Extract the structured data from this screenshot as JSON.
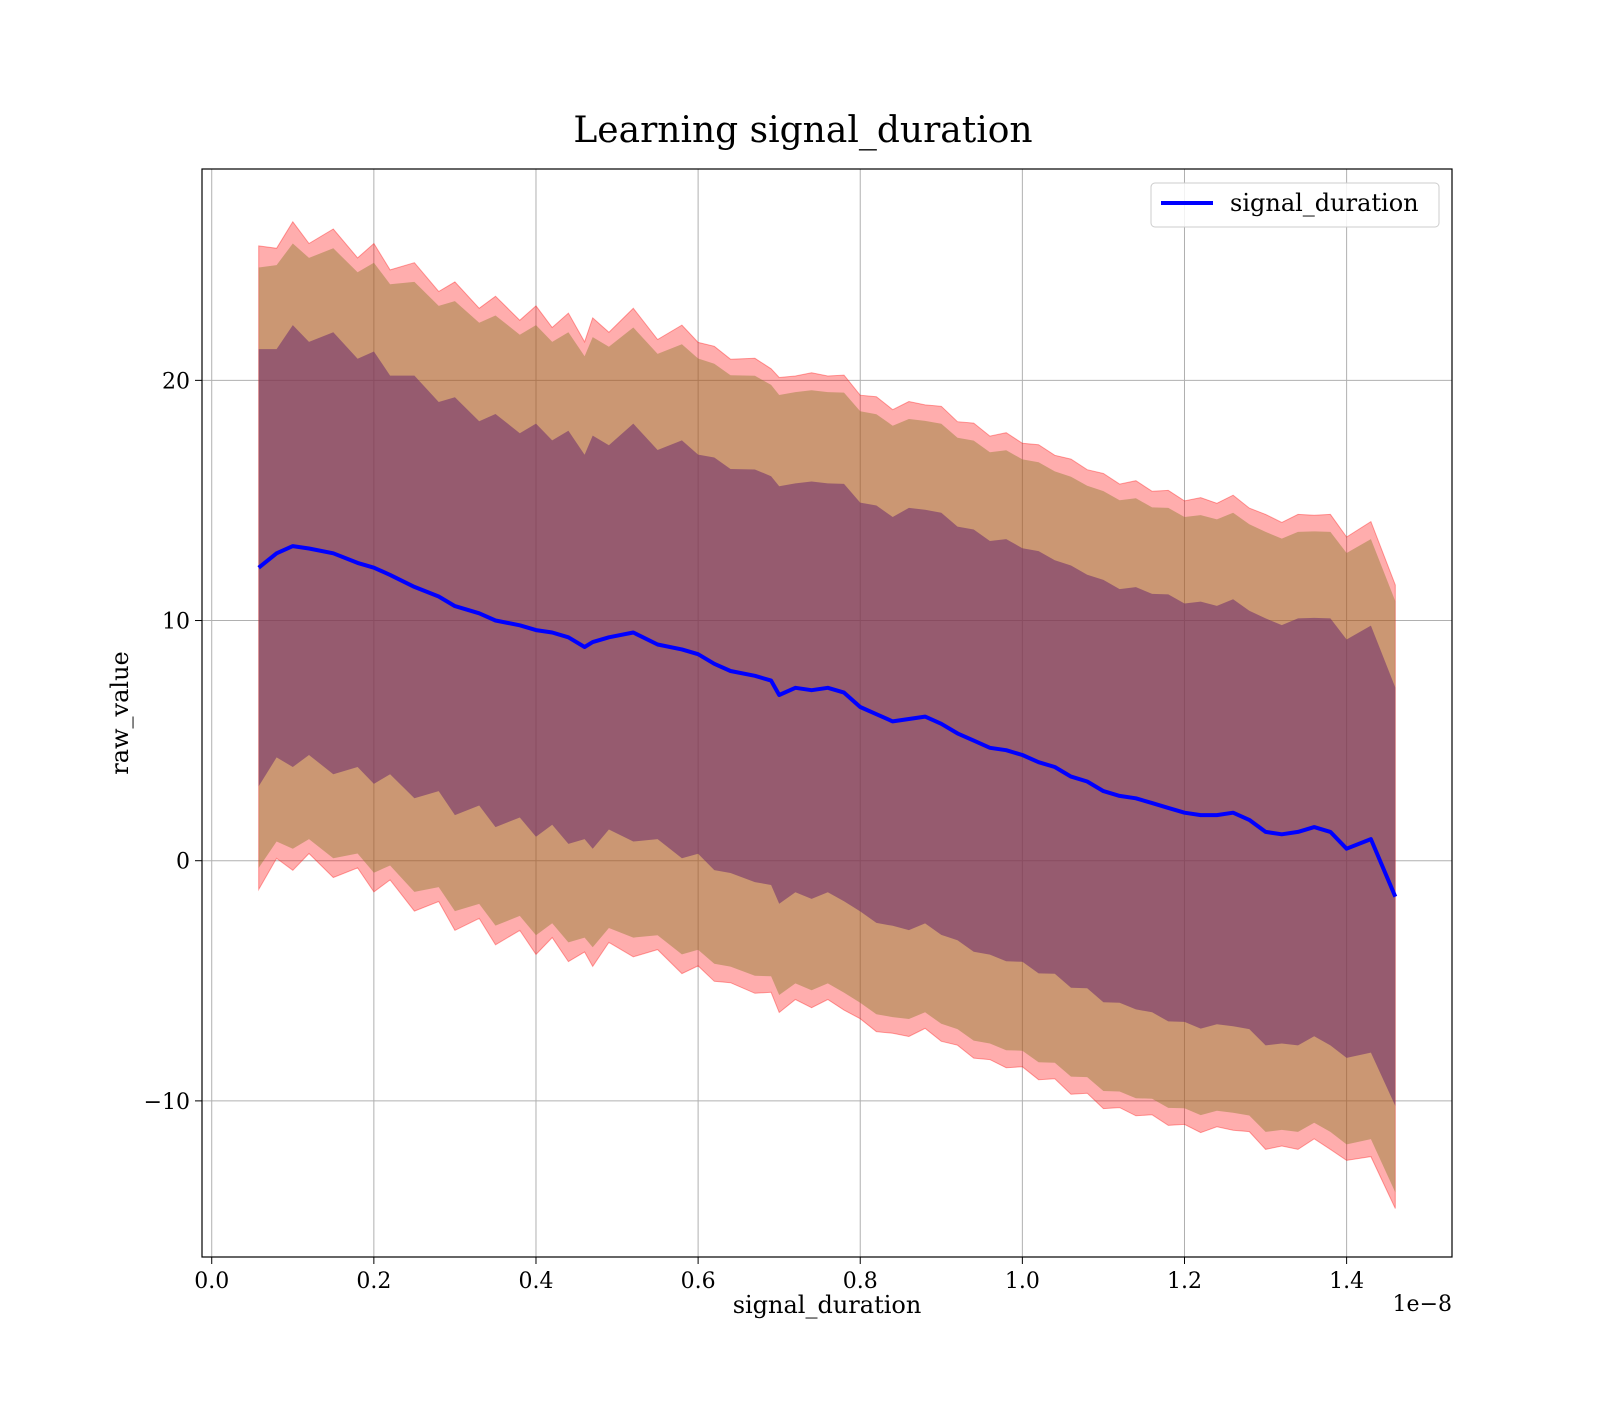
{
  "chart_data": {
    "type": "line",
    "title": "Learning signal_duration",
    "xlabel": "signal_duration",
    "ylabel": "raw_value",
    "x_offset_text": "1e−8",
    "xlim": [
      -0.012,
      1.53
    ],
    "ylim": [
      -16.5,
      28.8
    ],
    "x_ticks": [
      0.0,
      0.2,
      0.4,
      0.6,
      0.8,
      1.0,
      1.2,
      1.4
    ],
    "x_tick_labels": [
      "0.0",
      "0.2",
      "0.4",
      "0.6",
      "0.8",
      "1.0",
      "1.2",
      "1.4"
    ],
    "y_ticks": [
      -10,
      0,
      10,
      20
    ],
    "y_tick_labels": [
      "−10",
      "0",
      "10",
      "20"
    ],
    "grid": true,
    "legend_position": "top-right",
    "colors": {
      "line": "#0000ff",
      "band_outer": "#ff0000",
      "band_middle": "#8b7d2c",
      "band_inner": "#6b2a6b",
      "grid": "#b0b0b0"
    },
    "series": [
      {
        "name": "signal_duration",
        "x": [
          0.058,
          0.08,
          0.1,
          0.12,
          0.15,
          0.18,
          0.2,
          0.22,
          0.25,
          0.28,
          0.3,
          0.33,
          0.35,
          0.38,
          0.4,
          0.42,
          0.44,
          0.46,
          0.47,
          0.49,
          0.52,
          0.55,
          0.58,
          0.6,
          0.62,
          0.64,
          0.67,
          0.69,
          0.7,
          0.72,
          0.74,
          0.76,
          0.78,
          0.8,
          0.82,
          0.84,
          0.86,
          0.88,
          0.9,
          0.92,
          0.94,
          0.96,
          0.98,
          1.0,
          1.02,
          1.04,
          1.06,
          1.08,
          1.1,
          1.12,
          1.14,
          1.16,
          1.18,
          1.2,
          1.22,
          1.24,
          1.26,
          1.28,
          1.3,
          1.32,
          1.34,
          1.36,
          1.38,
          1.4,
          1.43,
          1.46
        ],
        "mean": [
          12.2,
          12.8,
          13.1,
          13.0,
          12.8,
          12.4,
          12.2,
          11.9,
          11.4,
          11.0,
          10.6,
          10.3,
          10.0,
          9.8,
          9.6,
          9.5,
          9.3,
          8.9,
          9.1,
          9.3,
          9.5,
          9.0,
          8.8,
          8.6,
          8.2,
          7.9,
          7.7,
          7.5,
          6.9,
          7.2,
          7.1,
          7.2,
          7.0,
          6.4,
          6.1,
          5.8,
          5.9,
          6.0,
          5.7,
          5.3,
          5.0,
          4.7,
          4.6,
          4.4,
          4.1,
          3.9,
          3.5,
          3.3,
          2.9,
          2.7,
          2.6,
          2.4,
          2.2,
          2.0,
          1.9,
          1.9,
          2.0,
          1.7,
          1.2,
          1.1,
          1.2,
          1.4,
          1.2,
          0.5,
          0.9,
          -1.5
        ],
        "band_inner": [
          8.8,
          8.8,
          8.9,
          8.9,
          8.9,
          8.8,
          8.7,
          8.6,
          8.5,
          8.4,
          8.4,
          8.3,
          8.3,
          8.3,
          8.3,
          8.3,
          8.3,
          8.3,
          8.3,
          8.3,
          8.4,
          8.4,
          8.4,
          8.4,
          8.5,
          8.5,
          8.5,
          8.6,
          8.6,
          8.6,
          8.6,
          8.6,
          8.6,
          8.6,
          8.6,
          8.6,
          8.7,
          8.7,
          8.7,
          8.7,
          8.7,
          8.7,
          8.7,
          8.7,
          8.7,
          8.7,
          8.7,
          8.7,
          8.7,
          8.7,
          8.7,
          8.8,
          8.8,
          8.8,
          8.8,
          8.8,
          8.8,
          8.8,
          8.8,
          8.8,
          8.8,
          8.8,
          8.8,
          8.8,
          8.8,
          8.8
        ],
        "band_middle": [
          12.2,
          12.3,
          12.3,
          12.4,
          12.4,
          12.4,
          12.4,
          12.4,
          12.4,
          12.4,
          12.4,
          12.4,
          12.4,
          12.4,
          12.4,
          12.4,
          12.4,
          12.4,
          12.4,
          12.4,
          12.4,
          12.4,
          12.4,
          12.4,
          12.4,
          12.4,
          12.4,
          12.4,
          12.4,
          12.4,
          12.4,
          12.4,
          12.4,
          12.4,
          12.4,
          12.4,
          12.4,
          12.4,
          12.4,
          12.4,
          12.4,
          12.4,
          12.4,
          12.4,
          12.4,
          12.4,
          12.4,
          12.4,
          12.4,
          12.4,
          12.4,
          12.4,
          12.4,
          12.4,
          12.4,
          12.4,
          12.4,
          12.4,
          12.4,
          12.4,
          12.4,
          12.4,
          12.4,
          12.4,
          12.4,
          12.4
        ],
        "band_outer": [
          13.0,
          13.1,
          13.1,
          13.1,
          13.1,
          13.1,
          13.1,
          13.1,
          13.1,
          13.1,
          13.1,
          13.1,
          13.1,
          13.1,
          13.1,
          13.1,
          13.1,
          13.1,
          13.1,
          13.1,
          13.1,
          13.1,
          13.1,
          13.1,
          13.1,
          13.1,
          13.1,
          13.1,
          13.1,
          13.1,
          13.1,
          13.1,
          13.1,
          13.1,
          13.1,
          13.1,
          13.1,
          13.1,
          13.1,
          13.1,
          13.1,
          13.1,
          13.1,
          13.1,
          13.1,
          13.1,
          13.1,
          13.1,
          13.1,
          13.1,
          13.1,
          13.1,
          13.1,
          13.1,
          13.1,
          13.1,
          13.1,
          13.1,
          13.1,
          13.1,
          13.1,
          13.1,
          13.1,
          13.1,
          13.1,
          13.1
        ]
      }
    ]
  }
}
